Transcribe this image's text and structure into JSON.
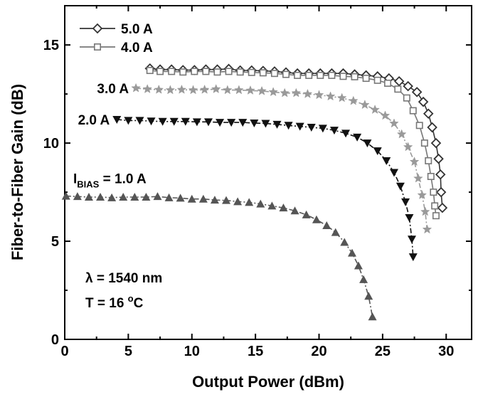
{
  "chart_data": {
    "type": "line",
    "xlabel": "Output Power (dBm)",
    "ylabel": "Fiber-to-Fiber Gain (dB)",
    "xlim": [
      0,
      32
    ],
    "ylim": [
      0,
      17
    ],
    "xticks": [
      0,
      5,
      10,
      15,
      20,
      25,
      30
    ],
    "yticks": [
      0,
      5,
      10,
      15
    ],
    "x_tick_labels": [
      "0",
      "5",
      "10",
      "15",
      "20",
      "25",
      "30"
    ],
    "y_tick_labels": [
      "0",
      "5",
      "10",
      "15"
    ],
    "grid": false,
    "legend_placement": "top-left",
    "annotations": {
      "wavelength": "λ = 1540 nm",
      "temp_prefix": "T = 16 ",
      "temp_degree": "o",
      "temp_unit": "C"
    },
    "series": [
      {
        "name": "5.0 A",
        "marker": "open-diamond",
        "color": "#333333",
        "line": "solid",
        "legend": true,
        "points": [
          [
            6.7,
            13.8
          ],
          [
            7.5,
            13.75
          ],
          [
            8.4,
            13.75
          ],
          [
            9.3,
            13.72
          ],
          [
            10.2,
            13.72
          ],
          [
            11.1,
            13.75
          ],
          [
            12.0,
            13.75
          ],
          [
            12.9,
            13.78
          ],
          [
            13.8,
            13.7
          ],
          [
            14.7,
            13.7
          ],
          [
            15.6,
            13.68
          ],
          [
            16.5,
            13.65
          ],
          [
            17.4,
            13.6
          ],
          [
            18.3,
            13.55
          ],
          [
            19.2,
            13.55
          ],
          [
            20.1,
            13.55
          ],
          [
            21.0,
            13.55
          ],
          [
            21.9,
            13.55
          ],
          [
            22.8,
            13.5
          ],
          [
            23.7,
            13.45
          ],
          [
            24.6,
            13.4
          ],
          [
            25.5,
            13.3
          ],
          [
            26.3,
            13.15
          ],
          [
            27.0,
            12.9
          ],
          [
            27.7,
            12.6
          ],
          [
            28.2,
            12.1
          ],
          [
            28.6,
            11.5
          ],
          [
            28.9,
            10.8
          ],
          [
            29.2,
            10.0
          ],
          [
            29.4,
            9.2
          ],
          [
            29.55,
            8.4
          ],
          [
            29.6,
            7.5
          ],
          [
            29.7,
            6.7
          ]
        ]
      },
      {
        "name": "4.0 A",
        "marker": "open-square",
        "color": "#777777",
        "line": "solid",
        "legend": true,
        "points": [
          [
            6.7,
            13.7
          ],
          [
            7.5,
            13.65
          ],
          [
            8.4,
            13.65
          ],
          [
            9.3,
            13.62
          ],
          [
            10.2,
            13.65
          ],
          [
            11.1,
            13.65
          ],
          [
            12.0,
            13.62
          ],
          [
            12.9,
            13.65
          ],
          [
            13.8,
            13.62
          ],
          [
            14.7,
            13.6
          ],
          [
            15.6,
            13.58
          ],
          [
            16.5,
            13.55
          ],
          [
            17.4,
            13.5
          ],
          [
            18.3,
            13.45
          ],
          [
            19.2,
            13.45
          ],
          [
            20.1,
            13.45
          ],
          [
            21.0,
            13.45
          ],
          [
            21.9,
            13.4
          ],
          [
            22.8,
            13.38
          ],
          [
            23.7,
            13.3
          ],
          [
            24.6,
            13.2
          ],
          [
            25.4,
            13.05
          ],
          [
            26.2,
            12.75
          ],
          [
            26.9,
            12.3
          ],
          [
            27.4,
            11.65
          ],
          [
            27.9,
            10.9
          ],
          [
            28.3,
            10.0
          ],
          [
            28.6,
            9.1
          ],
          [
            28.8,
            8.3
          ],
          [
            29.0,
            7.5
          ],
          [
            29.1,
            6.8
          ],
          [
            29.2,
            6.3
          ]
        ]
      },
      {
        "name": "3.0 A",
        "label_text": "3.0 A",
        "marker": "star",
        "color": "#9a9a9a",
        "line": "dash-dot",
        "legend": false,
        "points": [
          [
            5.6,
            12.8
          ],
          [
            6.5,
            12.75
          ],
          [
            7.4,
            12.72
          ],
          [
            8.3,
            12.7
          ],
          [
            9.2,
            12.72
          ],
          [
            10.1,
            12.7
          ],
          [
            11.0,
            12.72
          ],
          [
            11.9,
            12.75
          ],
          [
            12.8,
            12.7
          ],
          [
            13.7,
            12.7
          ],
          [
            14.6,
            12.68
          ],
          [
            15.5,
            12.65
          ],
          [
            16.4,
            12.6
          ],
          [
            17.3,
            12.55
          ],
          [
            18.2,
            12.55
          ],
          [
            19.1,
            12.5
          ],
          [
            20.0,
            12.45
          ],
          [
            20.9,
            12.38
          ],
          [
            21.8,
            12.3
          ],
          [
            22.7,
            12.15
          ],
          [
            23.6,
            11.95
          ],
          [
            24.4,
            11.7
          ],
          [
            25.2,
            11.4
          ],
          [
            25.9,
            11.0
          ],
          [
            26.5,
            10.45
          ],
          [
            27.0,
            9.8
          ],
          [
            27.5,
            9.05
          ],
          [
            27.8,
            8.2
          ],
          [
            28.1,
            7.35
          ],
          [
            28.35,
            6.5
          ],
          [
            28.5,
            5.6
          ]
        ]
      },
      {
        "name": "2.0 A",
        "label_text": "2.0 A",
        "marker": "filled-down-triangle",
        "color": "#111111",
        "line": "dash-dot",
        "legend": false,
        "points": [
          [
            4.1,
            11.2
          ],
          [
            5.0,
            11.15
          ],
          [
            5.9,
            11.15
          ],
          [
            6.8,
            11.12
          ],
          [
            7.7,
            11.1
          ],
          [
            8.6,
            11.1
          ],
          [
            9.5,
            11.1
          ],
          [
            10.4,
            11.08
          ],
          [
            11.3,
            11.08
          ],
          [
            12.2,
            11.05
          ],
          [
            13.1,
            11.05
          ],
          [
            14.0,
            11.05
          ],
          [
            14.9,
            11.02
          ],
          [
            15.8,
            11.0
          ],
          [
            16.7,
            10.95
          ],
          [
            17.6,
            10.9
          ],
          [
            18.5,
            10.85
          ],
          [
            19.4,
            10.8
          ],
          [
            20.3,
            10.75
          ],
          [
            21.2,
            10.65
          ],
          [
            22.1,
            10.5
          ],
          [
            23.0,
            10.3
          ],
          [
            23.8,
            10.0
          ],
          [
            24.6,
            9.6
          ],
          [
            25.3,
            9.1
          ],
          [
            25.9,
            8.5
          ],
          [
            26.4,
            7.8
          ],
          [
            26.8,
            7.0
          ],
          [
            27.1,
            6.2
          ],
          [
            27.3,
            5.1
          ],
          [
            27.4,
            4.2
          ]
        ]
      },
      {
        "name": "",
        "label_prefix": "I",
        "label_sub": "BIAS",
        "label_suffix": " = 1.0 A",
        "marker": "filled-up-triangle",
        "color": "#555555",
        "line": "dash-dot",
        "legend": false,
        "points": [
          [
            0.1,
            7.3
          ],
          [
            1.0,
            7.28
          ],
          [
            1.9,
            7.25
          ],
          [
            2.8,
            7.25
          ],
          [
            3.7,
            7.22
          ],
          [
            4.6,
            7.25
          ],
          [
            5.5,
            7.25
          ],
          [
            6.4,
            7.25
          ],
          [
            7.3,
            7.28
          ],
          [
            8.2,
            7.22
          ],
          [
            9.1,
            7.2
          ],
          [
            10.0,
            7.15
          ],
          [
            10.9,
            7.15
          ],
          [
            11.8,
            7.1
          ],
          [
            12.7,
            7.08
          ],
          [
            13.6,
            7.02
          ],
          [
            14.5,
            6.98
          ],
          [
            15.4,
            6.9
          ],
          [
            16.3,
            6.8
          ],
          [
            17.2,
            6.7
          ],
          [
            18.1,
            6.55
          ],
          [
            19.0,
            6.35
          ],
          [
            19.8,
            6.1
          ],
          [
            20.6,
            5.8
          ],
          [
            21.3,
            5.45
          ],
          [
            22.0,
            4.95
          ],
          [
            22.6,
            4.4
          ],
          [
            23.1,
            3.75
          ],
          [
            23.5,
            3.05
          ],
          [
            23.9,
            2.2
          ],
          [
            24.2,
            1.15
          ]
        ]
      }
    ]
  }
}
